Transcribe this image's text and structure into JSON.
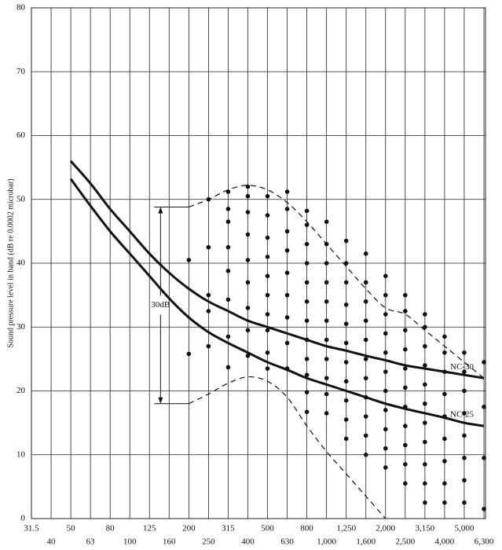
{
  "chart_data": {
    "type": "scatter",
    "y_label": "Sound pressure level in band (dB re 0.0002 microbar)",
    "categories": [
      "31.5",
      "40",
      "50",
      "63",
      "80",
      "100",
      "125",
      "160",
      "200",
      "250",
      "315",
      "400",
      "500",
      "630",
      "800",
      "1,000",
      "1,250",
      "1,600",
      "2,000",
      "2,500",
      "3,150",
      "4,000",
      "5,000",
      "6,300"
    ],
    "ylim": [
      0,
      80
    ],
    "yticks": [
      0,
      10,
      20,
      30,
      40,
      50,
      60,
      70,
      80
    ],
    "grid": true,
    "dot_color": "#111111",
    "dot_levels": [
      [],
      [],
      [],
      [],
      [],
      [],
      [],
      [],
      [
        25.8,
        40.5
      ],
      [
        27,
        32.5,
        35,
        42.5,
        50
      ],
      [
        23.7,
        28.5,
        34.3,
        38.8,
        42.5,
        46.5,
        48.5,
        51.2
      ],
      [
        25.5,
        29.5,
        33,
        37,
        40.5,
        44.5,
        48,
        50.5,
        52
      ],
      [
        23.5,
        26,
        29.5,
        32,
        35,
        38,
        41,
        44,
        47.5,
        50.5
      ],
      [
        23.5,
        27.5,
        31.5,
        35,
        38.5,
        42,
        45,
        48.5,
        51.2
      ],
      [
        16.7,
        19.8,
        22.5,
        25,
        28,
        31,
        34,
        37,
        40,
        43,
        46,
        48.2
      ],
      [
        16.5,
        19.5,
        22,
        25,
        28,
        31,
        34,
        37,
        40,
        43,
        46.5
      ],
      [
        12.5,
        15.5,
        18.5,
        21.5,
        24.5,
        27.5,
        30.5,
        33.5,
        37,
        40,
        43.5
      ],
      [
        10,
        13,
        16,
        19,
        22,
        25,
        28,
        31,
        34,
        37,
        41.5
      ],
      [
        8,
        11,
        14,
        17,
        20,
        23,
        26,
        29,
        32,
        35,
        38
      ],
      [
        5.5,
        8.5,
        11.5,
        14.5,
        17.5,
        20.5,
        23.5,
        26.5,
        29.5,
        32.5,
        35
      ],
      [
        2.5,
        5.5,
        8.5,
        12,
        15,
        18,
        21,
        24,
        27,
        30,
        32
      ],
      [
        2.5,
        5.5,
        9,
        12.5,
        16,
        19.5,
        23,
        26,
        28.5
      ],
      [
        2.5,
        6,
        9.5,
        13,
        16.5,
        20,
        23,
        26
      ],
      [
        1.5,
        9.5,
        17.5,
        24.5
      ]
    ],
    "series": [
      {
        "name": "NC-30",
        "color": "#111111",
        "style": "solid",
        "values": [
          null,
          null,
          56,
          52.5,
          48.5,
          45,
          41.5,
          38.5,
          36,
          34,
          32.5,
          31,
          30,
          29,
          28,
          27,
          26.3,
          25.5,
          24.8,
          24,
          23.5,
          23,
          22.5,
          22
        ]
      },
      {
        "name": "NC-25",
        "color": "#111111",
        "style": "solid",
        "values": [
          null,
          null,
          53.2,
          49,
          45,
          41.5,
          38,
          34.5,
          31.5,
          29.2,
          27.5,
          26,
          24.5,
          23.3,
          22,
          21,
          20,
          19,
          18,
          17.2,
          16.5,
          15.8,
          15,
          14.5
        ]
      },
      {
        "color": "#111111",
        "style": "dashed",
        "values": [
          null,
          null,
          null,
          null,
          null,
          null,
          null,
          null,
          48.8,
          50,
          51.5,
          52.2,
          51.5,
          49.5,
          46.5,
          43,
          39.5,
          36,
          33,
          32,
          29.5,
          27,
          24.5,
          22
        ]
      },
      {
        "color": "#111111",
        "style": "dashed",
        "values": [
          null,
          null,
          null,
          null,
          null,
          null,
          null,
          null,
          18,
          19.5,
          21.2,
          22.2,
          21.5,
          19,
          14.5,
          10.5,
          7,
          3.5,
          0,
          null,
          null,
          null,
          null,
          null
        ]
      }
    ],
    "annotation": "30dB"
  }
}
